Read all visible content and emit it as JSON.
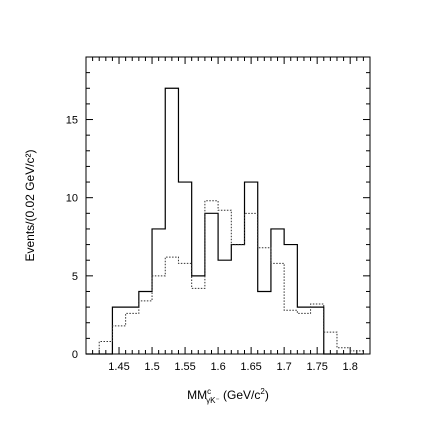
{
  "chart_data": {
    "type": "histogram",
    "xlim": [
      1.4,
      1.83
    ],
    "ylim": [
      0,
      19
    ],
    "bin_width": 0.02,
    "xticks": [
      "1.45",
      "1.5",
      "1.55",
      "1.6",
      "1.65",
      "1.7",
      "1.75",
      "1.8"
    ],
    "xtick_values": [
      1.45,
      1.5,
      1.55,
      1.6,
      1.65,
      1.7,
      1.75,
      1.8
    ],
    "yticks": [
      "0",
      "5",
      "10",
      "15"
    ],
    "ytick_values": [
      0,
      5,
      10,
      15
    ],
    "ylabel": "Events/(0.02 GeV/c²)",
    "xlabel": {
      "main": "MM",
      "sup": "c",
      "sub": "γK⁻",
      "rest_open": " (GeV/c",
      "rest_sup": "2",
      "rest_close": ")"
    },
    "series": [
      {
        "style": "solid",
        "bin_edges": [
          1.4,
          1.42,
          1.44,
          1.46,
          1.48,
          1.5,
          1.52,
          1.54,
          1.56,
          1.58,
          1.6,
          1.62,
          1.64,
          1.66,
          1.68,
          1.7,
          1.72,
          1.74,
          1.76,
          1.78,
          1.8,
          1.82
        ],
        "values": [
          0,
          0,
          3,
          3,
          4,
          8,
          17,
          11,
          5,
          9,
          6,
          7,
          11,
          4,
          8,
          7,
          3,
          3,
          0,
          0,
          0
        ]
      },
      {
        "style": "dotted",
        "bin_edges": [
          1.4,
          1.42,
          1.44,
          1.46,
          1.48,
          1.5,
          1.52,
          1.54,
          1.56,
          1.58,
          1.6,
          1.62,
          1.64,
          1.66,
          1.68,
          1.7,
          1.72,
          1.74,
          1.76,
          1.78,
          1.8,
          1.82
        ],
        "values": [
          0,
          0.8,
          1.8,
          2.6,
          3.4,
          5,
          6.2,
          5.8,
          4.2,
          9.8,
          9.2,
          7,
          9,
          6.8,
          5.8,
          2.8,
          2.6,
          3.2,
          1.4,
          0.4,
          0.2
        ]
      }
    ],
    "grid": false,
    "legend": "none"
  }
}
